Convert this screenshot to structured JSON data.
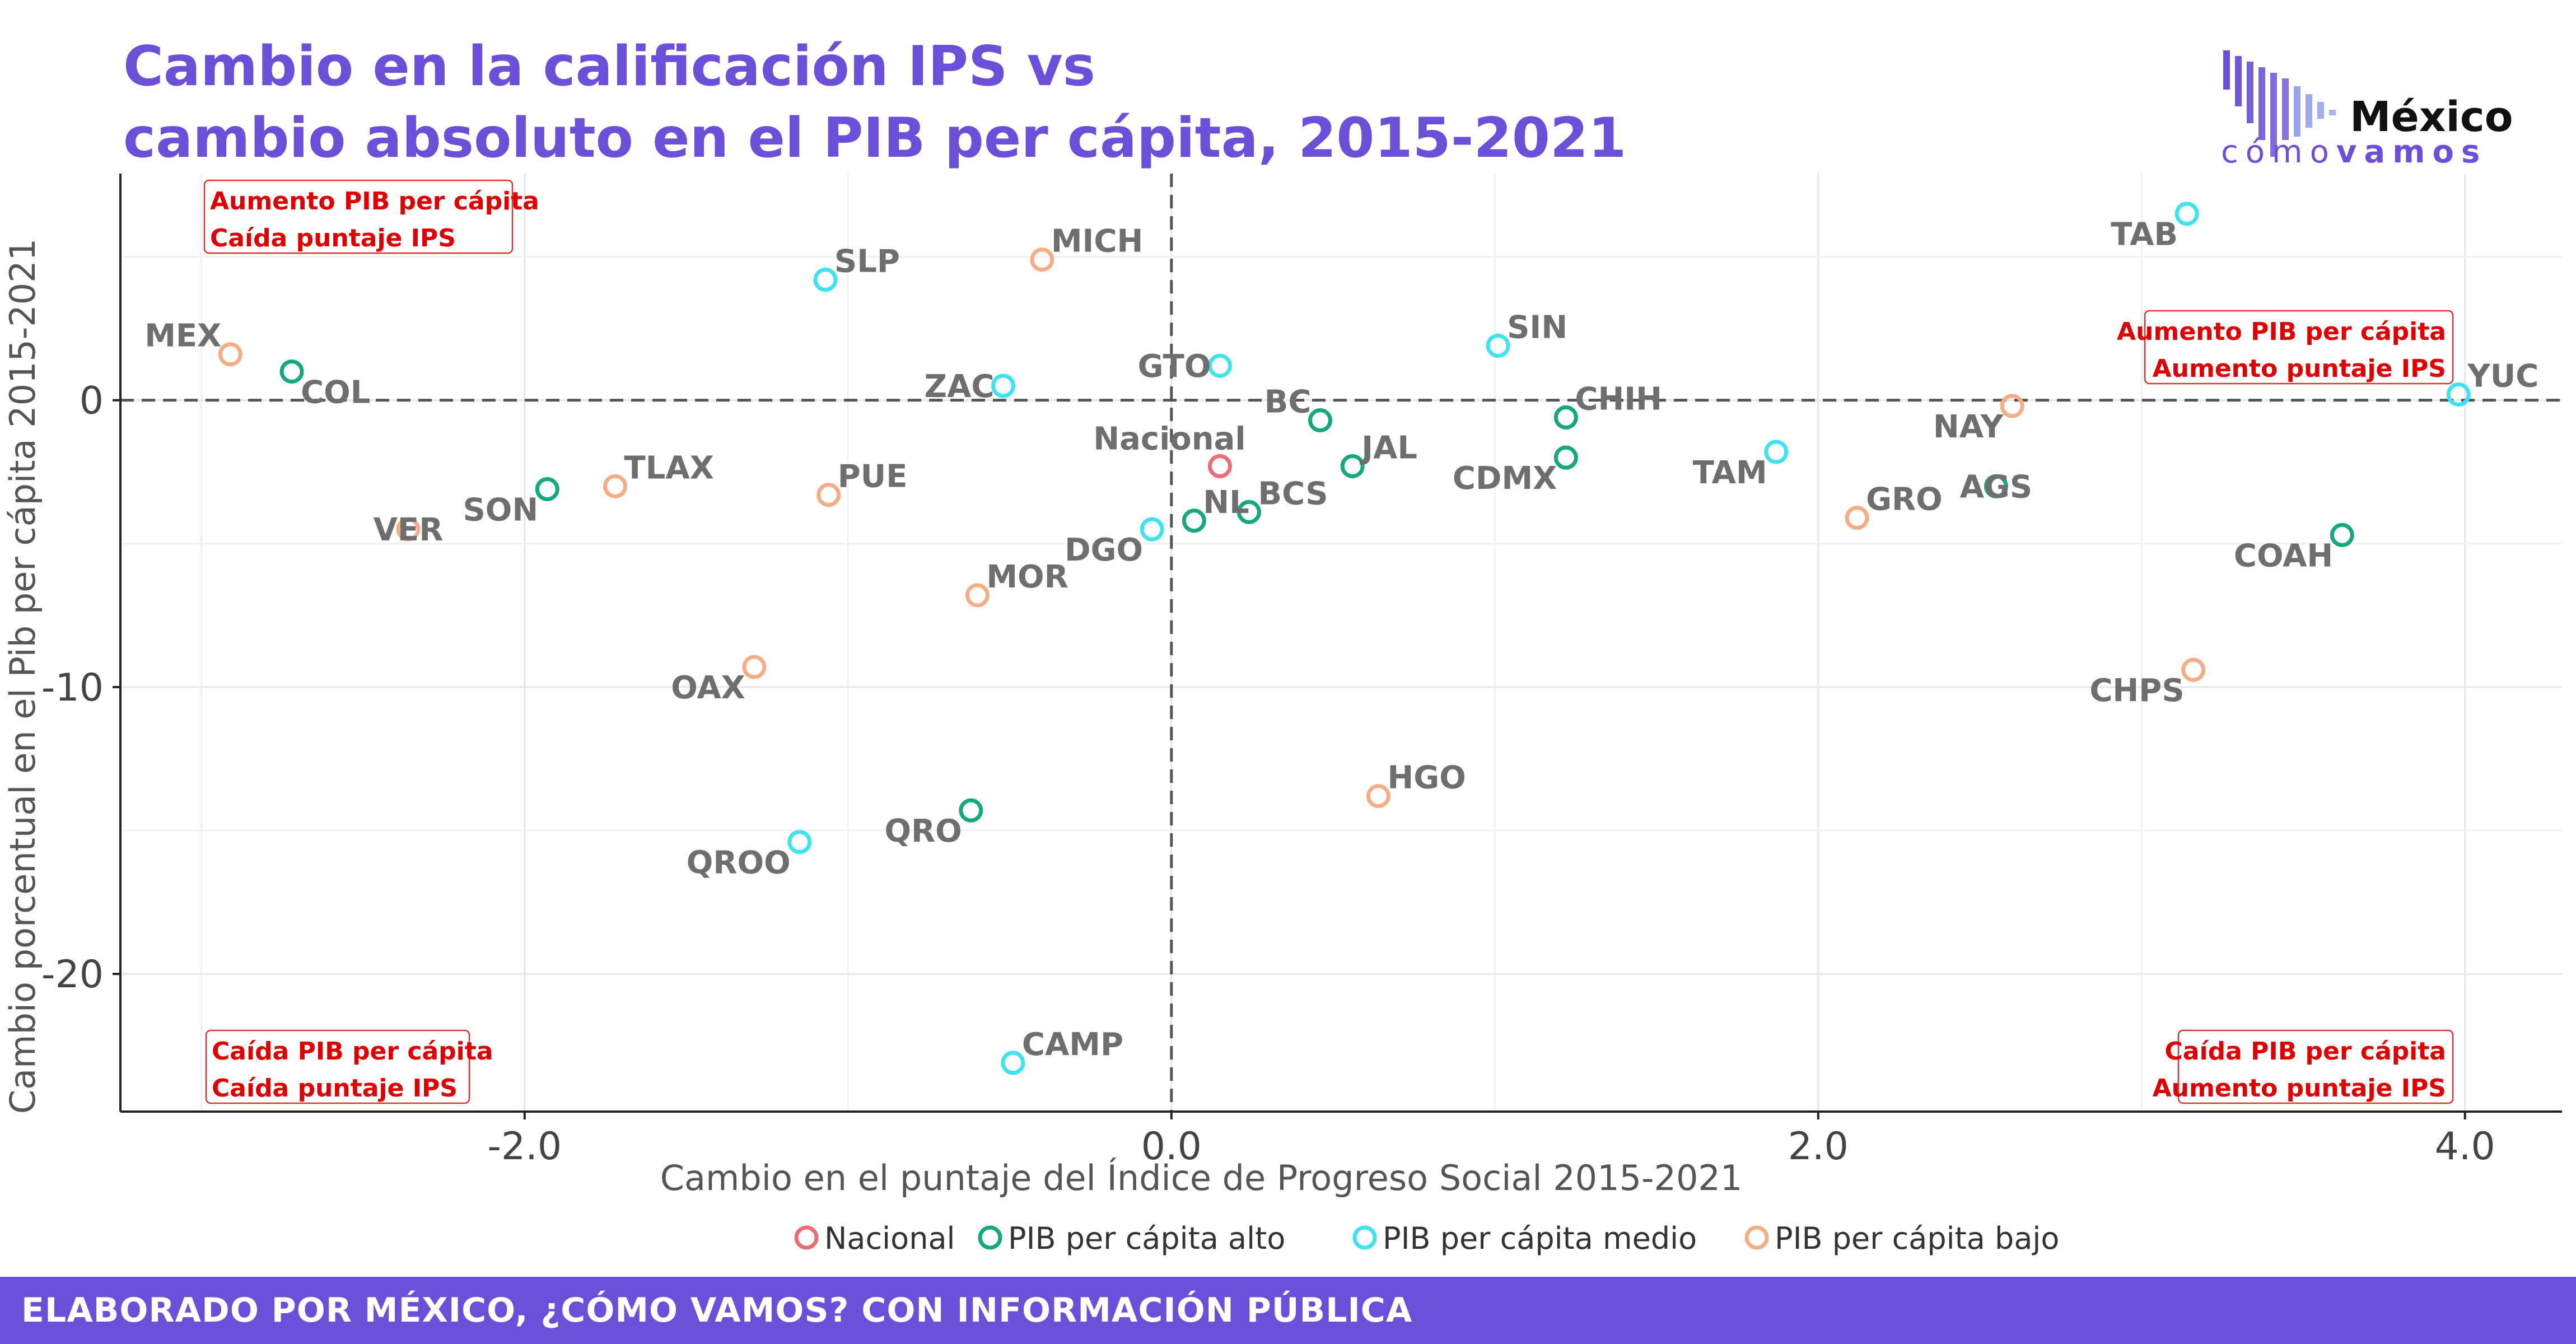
{
  "title": {
    "line1": "Cambio en la calificación IPS vs",
    "line2": "cambio absoluto en el PIB per cápita, 2015-2021"
  },
  "logo": {
    "line1": "México",
    "line2_a": "cómo",
    "line2_b": "vamos"
  },
  "footer": "ELABORADO POR MÉXICO, ¿CÓMO VAMOS? CON INFORMACIÓN PÚBLICA",
  "colors": {
    "Nacional": "#ee6c74",
    "PIB per cápita alto": "#14a97a",
    "PIB per cápita medio": "#3de3ef",
    "PIB per cápita bajo": "#f5ad86",
    "title": "#6a4fd8",
    "annotation": "#e00000"
  },
  "chart_data": {
    "type": "scatter",
    "xlabel": "Cambio en el puntaje del Índice de Progreso Social 2015-2021",
    "ylabel": "Cambio porcentual en el Pib per cápita 2015-2021",
    "xlim": [
      -3.25,
      4.3
    ],
    "ylim": [
      -24.8,
      7.9
    ],
    "xticks": [
      -2.0,
      0.0,
      2.0,
      4.0
    ],
    "xtick_labels": [
      "-2.0",
      "0.0",
      "2.0",
      "4.0"
    ],
    "yticks": [
      -20,
      -10,
      0
    ],
    "ytick_labels": [
      "-20",
      "-10",
      "0"
    ],
    "grid": true,
    "reference_lines": {
      "x": 0,
      "y": 0
    },
    "legend_position": "bottom",
    "legend": [
      "Nacional",
      "PIB per cápita alto",
      "PIB per cápita medio",
      "PIB per cápita bajo"
    ],
    "annotations": [
      {
        "lines": [
          "Aumento PIB per cápita",
          "Caída puntaje IPS"
        ],
        "corner": "top-left"
      },
      {
        "lines": [
          "Aumento PIB per cápita",
          "Aumento puntaje IPS"
        ],
        "corner": "upper-right"
      },
      {
        "lines": [
          "Caída PIB per cápita",
          "Caída puntaje IPS"
        ],
        "corner": "bottom-left"
      },
      {
        "lines": [
          "Caída PIB per cápita",
          "Aumento puntaje IPS"
        ],
        "corner": "bottom-right"
      }
    ],
    "points": [
      {
        "label": "Nacional",
        "group": "Nacional",
        "x": 0.15,
        "y": -2.3,
        "lpos": "n"
      },
      {
        "label": "COL",
        "group": "PIB per cápita alto",
        "x": -2.72,
        "y": 1.0,
        "lpos": "se"
      },
      {
        "label": "SON",
        "group": "PIB per cápita alto",
        "x": -1.93,
        "y": -3.1,
        "lpos": "sw"
      },
      {
        "label": "QRO",
        "group": "PIB per cápita alto",
        "x": -0.62,
        "y": -14.3,
        "lpos": "sw"
      },
      {
        "label": "NL",
        "group": "PIB per cápita alto",
        "x": 0.07,
        "y": -4.2,
        "lpos": "ne"
      },
      {
        "label": "BCS",
        "group": "PIB per cápita alto",
        "x": 0.24,
        "y": -3.9,
        "lpos": "ne"
      },
      {
        "label": "BC",
        "group": "PIB per cápita alto",
        "x": 0.46,
        "y": -0.7,
        "lpos": "nw"
      },
      {
        "label": "JAL",
        "group": "PIB per cápita alto",
        "x": 0.56,
        "y": -2.3,
        "lpos": "ne"
      },
      {
        "label": "CHIH",
        "group": "PIB per cápita alto",
        "x": 1.22,
        "y": -0.6,
        "lpos": "ne"
      },
      {
        "label": "CDMX",
        "group": "PIB per cápita alto",
        "x": 1.22,
        "y": -2.0,
        "lpos": "sw"
      },
      {
        "label": "AGS",
        "group": "PIB per cápita alto",
        "x": 2.55,
        "y": -3.0,
        "lpos": "c"
      },
      {
        "label": "COAH",
        "group": "PIB per cápita alto",
        "x": 3.62,
        "y": -4.7,
        "lpos": "sw"
      },
      {
        "label": "SLP",
        "group": "PIB per cápita medio",
        "x": -1.07,
        "y": 4.2,
        "lpos": "ne"
      },
      {
        "label": "ZAC",
        "group": "PIB per cápita medio",
        "x": -0.52,
        "y": 0.5,
        "lpos": "w"
      },
      {
        "label": "GTO",
        "group": "PIB per cápita medio",
        "x": 0.15,
        "y": 1.2,
        "lpos": "w"
      },
      {
        "label": "DGO",
        "group": "PIB per cápita medio",
        "x": -0.06,
        "y": -4.5,
        "lpos": "sw"
      },
      {
        "label": "QROO",
        "group": "PIB per cápita medio",
        "x": -1.15,
        "y": -15.4,
        "lpos": "sw"
      },
      {
        "label": "CAMP",
        "group": "PIB per cápita medio",
        "x": -0.49,
        "y": -23.1,
        "lpos": "ne"
      },
      {
        "label": "SIN",
        "group": "PIB per cápita medio",
        "x": 1.01,
        "y": 1.9,
        "lpos": "ne"
      },
      {
        "label": "TAM",
        "group": "PIB per cápita medio",
        "x": 1.87,
        "y": -1.8,
        "lpos": "sw"
      },
      {
        "label": "TAB",
        "group": "PIB per cápita medio",
        "x": 3.14,
        "y": 6.5,
        "lpos": "sw"
      },
      {
        "label": "YUC",
        "group": "PIB per cápita medio",
        "x": 3.98,
        "y": 0.2,
        "lpos": "ne"
      },
      {
        "label": "MEX",
        "group": "PIB per cápita bajo",
        "x": -2.91,
        "y": 1.6,
        "lpos": "nw"
      },
      {
        "label": "VER",
        "group": "PIB per cápita bajo",
        "x": -2.36,
        "y": -4.5,
        "lpos": "c"
      },
      {
        "label": "TLAX",
        "group": "PIB per cápita bajo",
        "x": -1.72,
        "y": -3.0,
        "lpos": "ne"
      },
      {
        "label": "PUE",
        "group": "PIB per cápita bajo",
        "x": -1.06,
        "y": -3.3,
        "lpos": "ne"
      },
      {
        "label": "MICH",
        "group": "PIB per cápita bajo",
        "x": -0.4,
        "y": 4.9,
        "lpos": "ne"
      },
      {
        "label": "MOR",
        "group": "PIB per cápita bajo",
        "x": -0.6,
        "y": -6.8,
        "lpos": "ne"
      },
      {
        "label": "OAX",
        "group": "PIB per cápita bajo",
        "x": -1.29,
        "y": -9.3,
        "lpos": "sw"
      },
      {
        "label": "HGO",
        "group": "PIB per cápita bajo",
        "x": 0.64,
        "y": -13.8,
        "lpos": "ne"
      },
      {
        "label": "GRO",
        "group": "PIB per cápita bajo",
        "x": 2.12,
        "y": -4.1,
        "lpos": "ne"
      },
      {
        "label": "NAY",
        "group": "PIB per cápita bajo",
        "x": 2.6,
        "y": -0.2,
        "lpos": "sw"
      },
      {
        "label": "CHPS",
        "group": "PIB per cápita bajo",
        "x": 3.16,
        "y": -9.4,
        "lpos": "sw"
      }
    ]
  }
}
